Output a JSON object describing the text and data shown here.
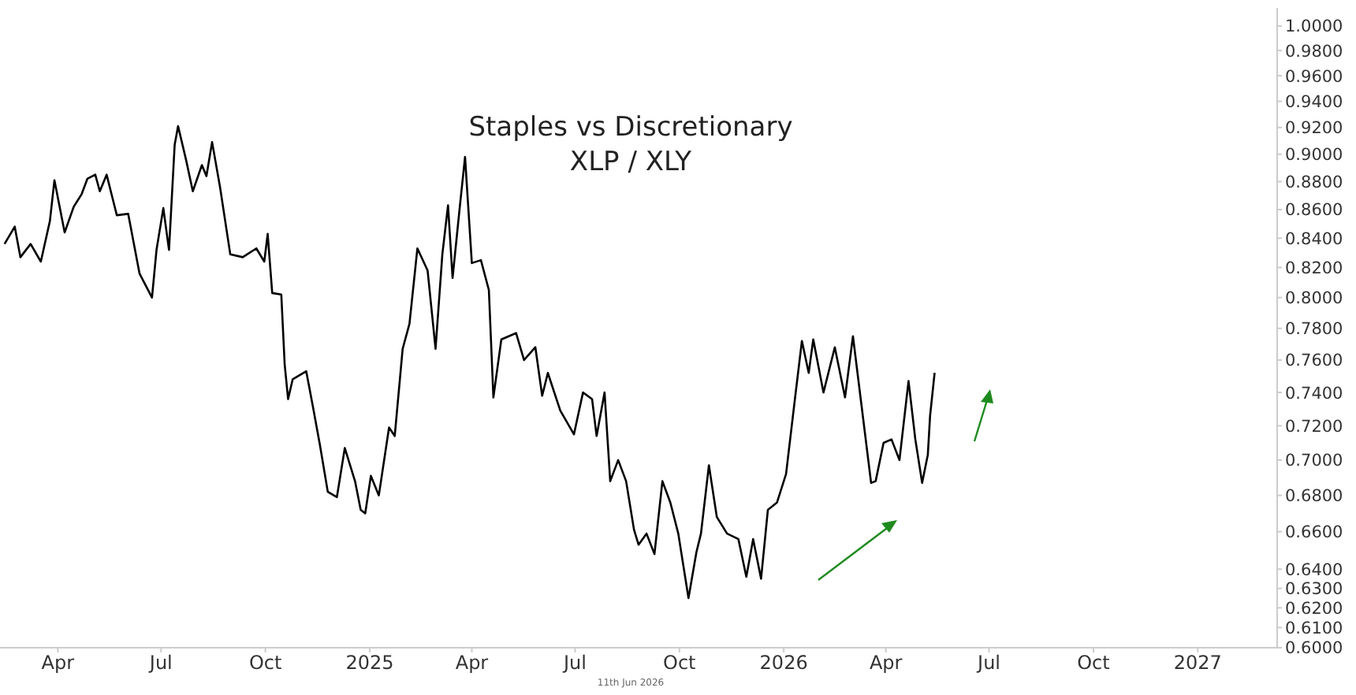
{
  "chart_data": {
    "type": "line",
    "title": "Staples vs Discretionary",
    "subtitle": "XLP / XLY",
    "annotations": [
      "11th Jun 2026"
    ],
    "log": "y",
    "grid": false,
    "marker": "none",
    "line_style": "solid",
    "xlim": [
      "2024-02-10",
      "2027-03-12"
    ],
    "xticks": [
      {
        "value": "2024-04-01",
        "label": "Apr"
      },
      {
        "value": "2024-07-01",
        "label": "Jul"
      },
      {
        "value": "2024-10-01",
        "label": "Oct"
      },
      {
        "value": "2025-01-01",
        "label": "2025"
      },
      {
        "value": "2025-04-01",
        "label": "Apr"
      },
      {
        "value": "2025-07-01",
        "label": "Jul"
      },
      {
        "value": "2025-10-01",
        "label": "Oct"
      },
      {
        "value": "2026-01-01",
        "label": "2026"
      },
      {
        "value": "2026-04-01",
        "label": "Apr"
      },
      {
        "value": "2026-07-01",
        "label": "Jul"
      },
      {
        "value": "2026-10-01",
        "label": "Oct"
      },
      {
        "value": "2027-01-01",
        "label": "2027"
      }
    ],
    "ylim": [
      0.6,
      1.015
    ],
    "yticks": [
      {
        "value": 0.6,
        "label": "0.6000"
      },
      {
        "value": 0.61,
        "label": "0.6100"
      },
      {
        "value": 0.62,
        "label": "0.6200"
      },
      {
        "value": 0.63,
        "label": "0.6300"
      },
      {
        "value": 0.64,
        "label": "0.6400"
      },
      {
        "value": 0.66,
        "label": "0.6600"
      },
      {
        "value": 0.68,
        "label": "0.6800"
      },
      {
        "value": 0.7,
        "label": "0.7000"
      },
      {
        "value": 0.72,
        "label": "0.7200"
      },
      {
        "value": 0.74,
        "label": "0.7400"
      },
      {
        "value": 0.76,
        "label": "0.7600"
      },
      {
        "value": 0.78,
        "label": "0.7800"
      },
      {
        "value": 0.8,
        "label": "0.8000"
      },
      {
        "value": 0.82,
        "label": "0.8200"
      },
      {
        "value": 0.84,
        "label": "0.8400"
      },
      {
        "value": 0.86,
        "label": "0.8600"
      },
      {
        "value": 0.88,
        "label": "0.8800"
      },
      {
        "value": 0.9,
        "label": "0.9000"
      },
      {
        "value": 0.92,
        "label": "0.9200"
      },
      {
        "value": 0.94,
        "label": "0.9400"
      },
      {
        "value": 0.96,
        "label": "0.9600"
      },
      {
        "value": 0.98,
        "label": "0.9800"
      },
      {
        "value": 1.0,
        "label": "1.0000"
      }
    ],
    "x": [
      "2024-02-14",
      "2024-02-23",
      "2024-02-28",
      "2024-03-08",
      "2024-03-17",
      "2024-03-25",
      "2024-03-29",
      "2024-04-07",
      "2024-04-15",
      "2024-04-22",
      "2024-04-27",
      "2024-05-04",
      "2024-05-08",
      "2024-05-14",
      "2024-05-23",
      "2024-06-02",
      "2024-06-12",
      "2024-06-23",
      "2024-06-27",
      "2024-07-03",
      "2024-07-08",
      "2024-07-13",
      "2024-07-16",
      "2024-07-23",
      "2024-07-29",
      "2024-08-06",
      "2024-08-10",
      "2024-08-15",
      "2024-08-22",
      "2024-08-31",
      "2024-09-11",
      "2024-09-23",
      "2024-09-30",
      "2024-10-03",
      "2024-10-07",
      "2024-10-15",
      "2024-10-18",
      "2024-10-21",
      "2024-10-25",
      "2024-11-06",
      "2024-11-12",
      "2024-11-18",
      "2024-11-25",
      "2024-12-03",
      "2024-12-10",
      "2024-12-19",
      "2024-12-24",
      "2024-12-28",
      "2025-01-02",
      "2025-01-09",
      "2025-01-18",
      "2025-01-23",
      "2025-01-30",
      "2025-02-05",
      "2025-02-12",
      "2025-02-21",
      "2025-02-28",
      "2025-03-06",
      "2025-03-11",
      "2025-03-15",
      "2025-03-21",
      "2025-03-26",
      "2025-04-01",
      "2025-04-09",
      "2025-04-16",
      "2025-04-20",
      "2025-04-27",
      "2025-05-10",
      "2025-05-17",
      "2025-05-27",
      "2025-06-02",
      "2025-06-07",
      "2025-06-18",
      "2025-06-30",
      "2025-07-08",
      "2025-07-16",
      "2025-07-20",
      "2025-07-27",
      "2025-08-01",
      "2025-08-08",
      "2025-08-15",
      "2025-08-22",
      "2025-08-26",
      "2025-09-02",
      "2025-09-09",
      "2025-09-16",
      "2025-09-23",
      "2025-09-30",
      "2025-10-09",
      "2025-10-16",
      "2025-10-20",
      "2025-10-27",
      "2025-11-03",
      "2025-11-12",
      "2025-11-22",
      "2025-11-29",
      "2025-12-05",
      "2025-12-12",
      "2025-12-18",
      "2025-12-26",
      "2026-01-03",
      "2026-01-11",
      "2026-01-17",
      "2026-01-23",
      "2026-01-27",
      "2026-02-05",
      "2026-02-15",
      "2026-02-24",
      "2026-03-03",
      "2026-03-07",
      "2026-03-19",
      "2026-03-23",
      "2026-03-30",
      "2026-04-06",
      "2026-04-13",
      "2026-04-21",
      "2026-04-27",
      "2026-05-03",
      "2026-05-08",
      "2026-05-10",
      "2026-05-14"
    ],
    "series": [
      {
        "color": "#000000",
        "values": [
          0.836,
          0.848,
          0.827,
          0.836,
          0.824,
          0.852,
          0.881,
          0.844,
          0.862,
          0.871,
          0.882,
          0.885,
          0.873,
          0.885,
          0.856,
          0.857,
          0.816,
          0.8,
          0.832,
          0.861,
          0.832,
          0.907,
          0.921,
          0.896,
          0.873,
          0.892,
          0.884,
          0.909,
          0.876,
          0.829,
          0.827,
          0.833,
          0.824,
          0.843,
          0.803,
          0.802,
          0.757,
          0.736,
          0.748,
          0.753,
          0.731,
          0.709,
          0.682,
          0.679,
          0.707,
          0.688,
          0.672,
          0.67,
          0.691,
          0.68,
          0.719,
          0.714,
          0.767,
          0.783,
          0.833,
          0.818,
          0.767,
          0.829,
          0.863,
          0.813,
          0.859,
          0.898,
          0.823,
          0.825,
          0.805,
          0.737,
          0.773,
          0.777,
          0.76,
          0.768,
          0.738,
          0.752,
          0.729,
          0.715,
          0.74,
          0.736,
          0.714,
          0.74,
          0.688,
          0.7,
          0.688,
          0.661,
          0.653,
          0.659,
          0.648,
          0.688,
          0.676,
          0.659,
          0.625,
          0.649,
          0.659,
          0.697,
          0.668,
          0.659,
          0.656,
          0.636,
          0.656,
          0.635,
          0.672,
          0.676,
          0.692,
          0.737,
          0.772,
          0.752,
          0.773,
          0.74,
          0.768,
          0.737,
          0.775,
          0.752,
          0.687,
          0.688,
          0.71,
          0.712,
          0.7,
          0.747,
          0.712,
          0.687,
          0.703,
          0.726,
          0.752
        ]
      }
    ]
  }
}
